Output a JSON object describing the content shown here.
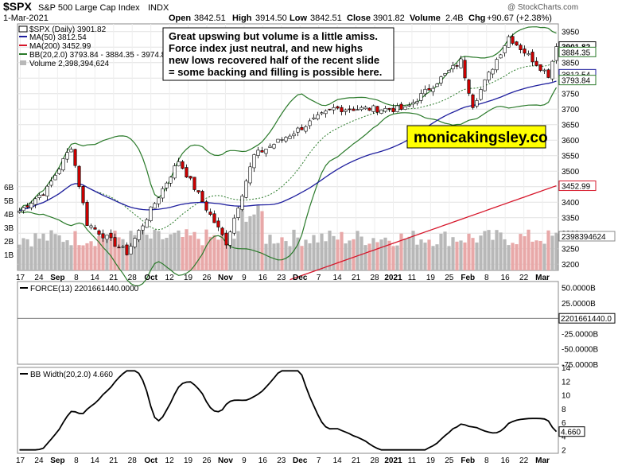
{
  "header": {
    "symbol": "$SPX",
    "name": "S&P 500 Large Cap Index",
    "exchange": "INDX",
    "date": "1-Mar-2021",
    "open_label": "Open",
    "open": "3842.51",
    "high_label": "High",
    "high": "3914.50",
    "low_label": "Low",
    "low": "3842.51",
    "close_label": "Close",
    "close": "3901.82",
    "volume_label": "Volume",
    "volume": "2.4B",
    "chg_label": "Chg",
    "chg": "+90.67 (+2.38%)",
    "watermark": "@ StockCharts.com"
  },
  "legend": {
    "price": "$SPX (Daily) 3901.82",
    "ma50": "MA(50) 3812.54",
    "ma200": "MA(200) 3452.99",
    "bb": "BB(20,2.0) 3793.84 - 3884.35 - 3974.86",
    "volume": "Volume 2,398,394,624",
    "force": "FORCE(13) 2201661440.0000",
    "bbw": "BB Width(20,2.0) 4.660"
  },
  "annotation": {
    "lines": [
      "Great upswing but volume is a little amiss.",
      "Force index just neutral, and new highs",
      "new lows recovered half of the recent slide",
      "= some backing and filling is possible here."
    ],
    "brand": "monicakingsley.co"
  },
  "colors": {
    "up": "#ffffff",
    "down": "#cc0000",
    "ma50": "#1f1f9e",
    "ma200": "#d6162a",
    "bb": "#2a7a2a",
    "vol_up": "#b8b8b8",
    "vol_down": "#e8a8a8",
    "force_pos": "#6a9a6a",
    "force_neg": "#a86a6a",
    "brand_bg": "#ffff00"
  },
  "chart_data": {
    "type": "candlestick",
    "x_ticks": [
      "17",
      "24",
      "Sep",
      "8",
      "14",
      "21",
      "28",
      "Oct",
      "12",
      "19",
      "26",
      "Nov",
      "9",
      "16",
      "23",
      "Dec",
      "7",
      "14",
      "21",
      "28",
      "2021",
      "11",
      "19",
      "25",
      "Feb",
      "8",
      "16",
      "22",
      "Mar"
    ],
    "price_panel": {
      "ylim": [
        3180,
        3975
      ],
      "y_ticks": [
        3200,
        3250,
        3300,
        3350,
        3400,
        3450,
        3500,
        3550,
        3600,
        3650,
        3700,
        3750,
        3800,
        3850,
        3900,
        3950
      ],
      "volume_ticks": [
        "1B",
        "2B",
        "3B",
        "4B",
        "5B",
        "6B"
      ],
      "last_labels": [
        "3901.82",
        "3884.35",
        "3812.54",
        "3793.84",
        "3452.99",
        "2398394624"
      ],
      "ohlc_keypoints": [
        {
          "x": "2020-08-14",
          "close": 3372
        },
        {
          "x": "2020-08-25",
          "close": 3443
        },
        {
          "x": "2020-09-02",
          "close": 3580
        },
        {
          "x": "2020-09-08",
          "close": 3332
        },
        {
          "x": "2020-09-23",
          "close": 3237
        },
        {
          "x": "2020-10-12",
          "close": 3534
        },
        {
          "x": "2020-10-30",
          "close": 3270
        },
        {
          "x": "2020-11-09",
          "close": 3550
        },
        {
          "x": "2020-12-08",
          "close": 3702
        },
        {
          "x": "2021-01-04",
          "close": 3700
        },
        {
          "x": "2021-01-25",
          "close": 3855
        },
        {
          "x": "2021-01-29",
          "close": 3714
        },
        {
          "x": "2021-02-12",
          "close": 3934
        },
        {
          "x": "2021-02-26",
          "close": 3811
        },
        {
          "x": "2021-03-01",
          "close": 3901.82
        }
      ]
    },
    "force_panel": {
      "ylim": [
        -75000000000,
        60000000000
      ],
      "y_ticks": [
        "50.0000B",
        "25.0000B",
        "0",
        "-25.0000B",
        "-50.0000B",
        "-75.0000B"
      ],
      "last_label": "2201661440.0"
    },
    "bbwidth_panel": {
      "ylim": [
        1.5,
        14
      ],
      "y_ticks": [
        "2",
        "4",
        "6",
        "8",
        "10",
        "12",
        "14"
      ],
      "last_label": "4.660"
    }
  }
}
